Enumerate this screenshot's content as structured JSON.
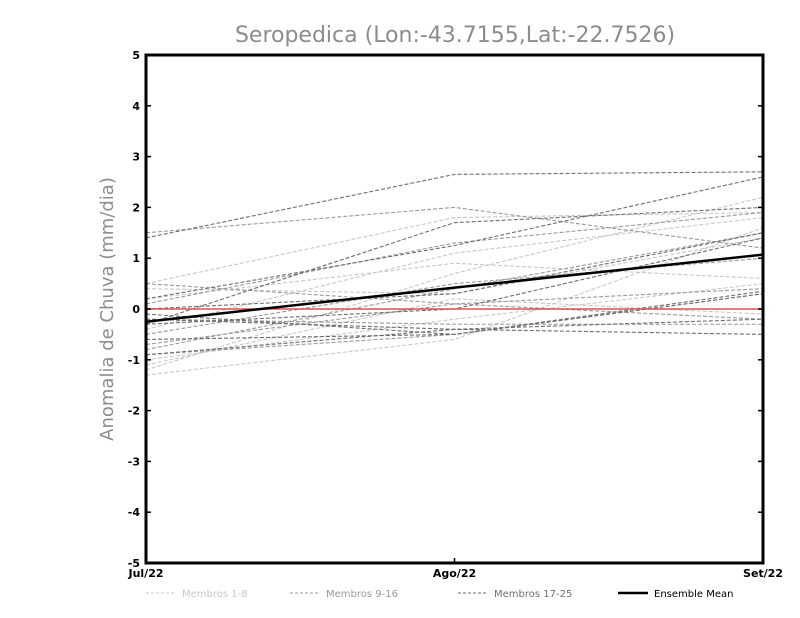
{
  "chart_data": {
    "type": "line",
    "title": "Seropedica (Lon:-43.7155,Lat:-22.7526)",
    "ylabel": "Anomalia de Chuva (mm/dia)",
    "xlabel": "",
    "categories": [
      "Jul/22",
      "Ago/22",
      "Set/22"
    ],
    "ylim": [
      -5,
      5
    ],
    "yticks": [
      -5,
      -4,
      -3,
      -2,
      -1,
      0,
      1,
      2,
      3,
      4,
      5
    ],
    "zero_line_color": "#e05050",
    "groups": [
      {
        "name": "Membros 1-8",
        "color": "#c8c8c8",
        "series": [
          [
            0.5,
            1.8,
            1.9
          ],
          [
            -1.3,
            -0.6,
            1.6
          ],
          [
            -1.2,
            0.7,
            2.2
          ],
          [
            0.2,
            0.9,
            0.6
          ],
          [
            -0.4,
            1.1,
            1.8
          ],
          [
            -1.0,
            -0.2,
            0.5
          ],
          [
            0.4,
            0.3,
            1.4
          ],
          [
            -1.1,
            0.2,
            -0.1
          ]
        ]
      },
      {
        "name": "Membros 9-16",
        "color": "#9a9a9a",
        "series": [
          [
            1.5,
            2.0,
            1.2
          ],
          [
            -0.9,
            -0.5,
            0.3
          ],
          [
            -0.5,
            0.5,
            1.0
          ],
          [
            0.1,
            1.3,
            1.9
          ],
          [
            -0.2,
            -0.3,
            -0.3
          ],
          [
            -0.7,
            0.1,
            0.4
          ],
          [
            -0.8,
            0.4,
            1.5
          ],
          [
            0.5,
            0.1,
            -0.2
          ]
        ]
      },
      {
        "name": "Membros 17-25",
        "color": "#6e6e6e",
        "series": [
          [
            1.4,
            2.65,
            2.7
          ],
          [
            0.2,
            1.25,
            2.6
          ],
          [
            -0.3,
            1.7,
            2.0
          ],
          [
            0.0,
            0.3,
            1.5
          ],
          [
            -0.9,
            -0.4,
            -0.2
          ],
          [
            -0.1,
            -0.5,
            0.3
          ],
          [
            -0.3,
            0.0,
            1.4
          ],
          [
            -0.6,
            -0.5,
            0.35
          ],
          [
            -0.2,
            -0.4,
            -0.5
          ]
        ]
      }
    ],
    "ensemble_mean": {
      "name": "Ensemble Mean",
      "color": "#000000",
      "values": [
        -0.25,
        0.42,
        1.07
      ]
    }
  }
}
